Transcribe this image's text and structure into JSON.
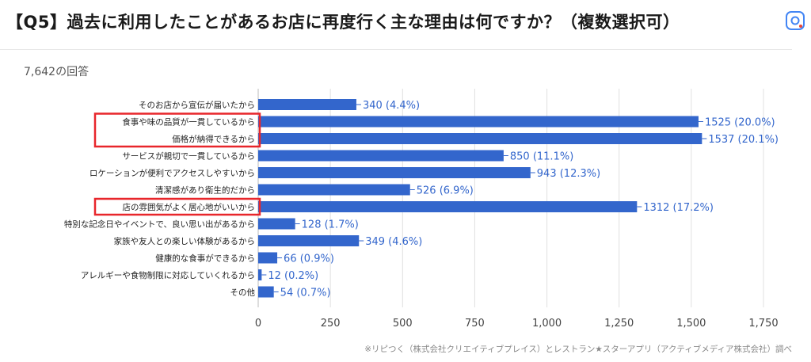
{
  "title": "【Q5】過去に利用したことがあるお店に再度行く主な理由は何ですか？（複数選択可）",
  "response_count": "7,642の回答",
  "credit": "※リピつく（株式会社クリエイティブプレイス）とレストラン★スターアプリ（アクティブメディア株式会社）調べ",
  "colors": {
    "bar": "#3366cc",
    "highlight": "#e8262b",
    "label": "#3366cc",
    "grid": "#e0e0e0"
  },
  "icons": {
    "lens": "google-lens-icon"
  },
  "chart_data": {
    "type": "bar",
    "orientation": "horizontal",
    "categories": [
      "そのお店から宣伝が届いたから",
      "食事や味の品質が一貫しているから",
      "価格が納得できるから",
      "サービスが親切で一貫しているから",
      "ロケーションが便利でアクセスしやすいから",
      "清潔感があり衛生的だから",
      "店の雰囲気がよく居心地がいいから",
      "特別な記念日やイベントで、良い思い出があるから",
      "家族や友人との楽しい体験があるから",
      "健康的な食事ができるから",
      "アレルギーや食物制限に対応していくれるから",
      "その他"
    ],
    "values": [
      340,
      1525,
      1537,
      850,
      943,
      526,
      1312,
      128,
      349,
      66,
      12,
      54
    ],
    "data_labels": [
      "340 (4.4%)",
      "1525 (20.0%)",
      "1537 (20.1%)",
      "850 (11.1%)",
      "943 (12.3%)",
      "526 (6.9%)",
      "1312 (17.2%)",
      "128 (1.7%)",
      "349 (4.6%)",
      "66 (0.9%)",
      "12 (0.2%)",
      "54 (0.7%)"
    ],
    "highlighted": [
      1,
      2,
      6
    ],
    "xlim": [
      0,
      1750
    ],
    "x_ticks": [
      0,
      250,
      500,
      750,
      1000,
      1250,
      1500,
      1750
    ],
    "x_tick_labels": [
      "0",
      "250",
      "500",
      "750",
      "1,000",
      "1,250",
      "1,500",
      "1,750"
    ],
    "grid": true
  }
}
